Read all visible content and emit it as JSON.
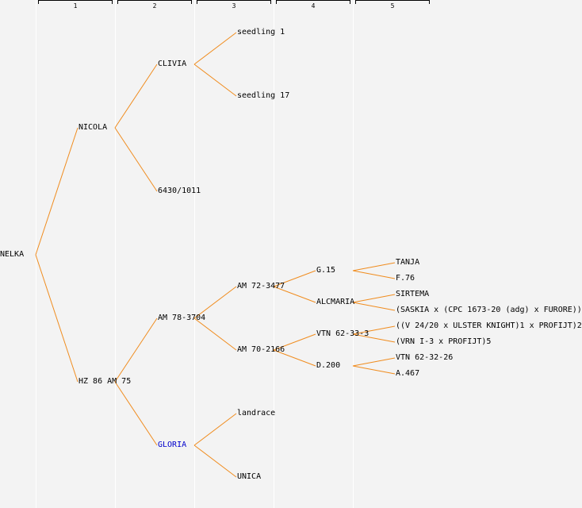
{
  "generations": [
    "1",
    "2",
    "3",
    "4",
    "5"
  ],
  "colors": {
    "edge": "#f08c1e",
    "text": "#000000",
    "highlight": "#0000cc",
    "background": "#f3f3f3"
  },
  "nodes": {
    "root": "NELKA",
    "g1_nicola": "NICOLA",
    "g1_hz86": "HZ 86 AM 75",
    "g2_clivia": "CLIVIA",
    "g2_6430": "6430/1011",
    "g2_am78": "AM 78-3704",
    "g2_gloria": "GLORIA",
    "g3_seedling1": "seedling 1",
    "g3_seedling17": "seedling 17",
    "g3_am72": "AM 72-3477",
    "g3_am70": "AM 70-2166",
    "g3_landrace": "landrace",
    "g3_unica": "UNICA",
    "g4_g15": "G.15",
    "g4_alcmaria": "ALCMARIA",
    "g4_vtn62333": "VTN 62-33-3",
    "g4_d200": "D.200",
    "g5_tanja": "TANJA",
    "g5_f76": "F.76",
    "g5_sirtema": "SIRTEMA",
    "g5_saskia": "(SASKIA x (CPC 1673-20 (adg) x FURORE))",
    "g5_v24": "((V 24/20 x ULSTER KNIGHT)1 x PROFIJT)2",
    "g5_vrn": "(VRN I-3 x PROFIJT)5",
    "g5_vtn62326": "VTN 62-32-26",
    "g5_a467": "A.467"
  }
}
